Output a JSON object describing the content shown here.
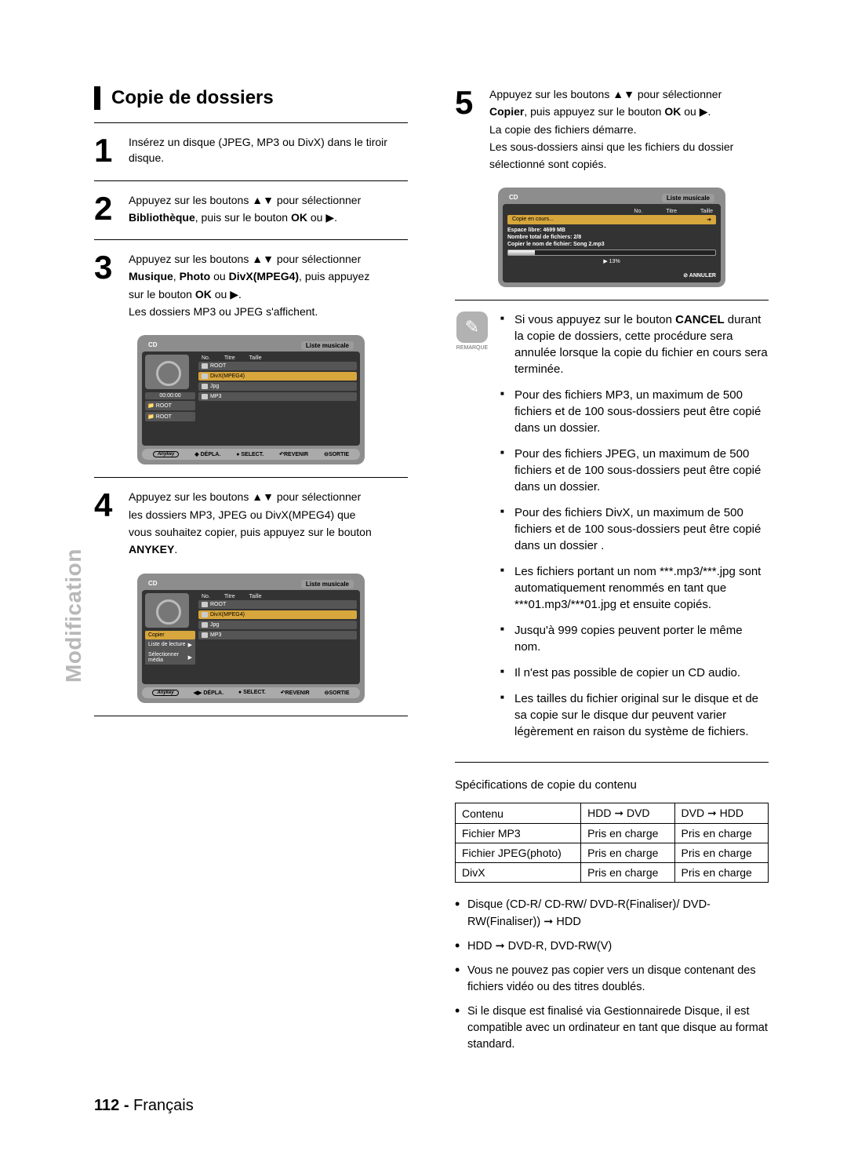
{
  "side_tab": "Modification",
  "left": {
    "title": "Copie de dossiers",
    "step1": {
      "num": "1",
      "text": "Insérez un disque (JPEG, MP3 ou DivX) dans le tiroir disque."
    },
    "step2": {
      "num": "2",
      "l1a": "Appuyez sur les boutons ",
      "l1b": " pour sélectionner",
      "l2a": "Bibliothèque",
      "l2b": ", puis sur le bouton ",
      "l2c": "OK",
      "l2d": " ou ▶."
    },
    "step3": {
      "num": "3",
      "l1a": "Appuyez sur les boutons ",
      "l1b": " pour sélectionner",
      "l2a": "Musique",
      "l2b": ", ",
      "l2c": "Photo",
      "l2d": " ou ",
      "l2e": "DivX(MPEG4)",
      "l2f": ", puis appuyez",
      "l3a": "sur le bouton ",
      "l3b": "OK",
      "l3c": " ou ▶.",
      "l4": "Les dossiers MP3 ou JPEG s'affichent."
    },
    "screen1": {
      "header_left": "CD",
      "header_right": "Liste musicale",
      "cols": {
        "no": "No.",
        "titre": "Titre",
        "taille": "Taille"
      },
      "rows": [
        "ROOT",
        "DivX(MPEG4)",
        "Jpg",
        "MP3"
      ],
      "timer": "00:00:00",
      "side": [
        "ROOT",
        "ROOT"
      ],
      "foot": {
        "anykey": "Anykey",
        "depl": "DÉPLA.",
        "sel": "SELECT.",
        "rev": "REVENIR",
        "sor": "SORTIE"
      }
    },
    "step4": {
      "num": "4",
      "l1a": "Appuyez sur les boutons ",
      "l1b": " pour sélectionner",
      "l2": "les dossiers MP3, JPEG ou DivX(MPEG4) que",
      "l3": "vous souhaitez copier, puis appuyez sur le bouton",
      "l4": "ANYKEY",
      "l4b": "."
    },
    "screen2": {
      "header_left": "CD",
      "header_right": "Liste musicale",
      "cols": {
        "no": "No.",
        "titre": "Titre",
        "taille": "Taille"
      },
      "rows": [
        "ROOT",
        "DivX(MPEG4)",
        "Jpg",
        "MP3"
      ],
      "menu": [
        "Copier",
        "Liste de lecture",
        "Sélectionner média"
      ],
      "foot": {
        "anykey": "Anykey",
        "depl": "DÉPLA.",
        "sel": "SELECT.",
        "rev": "REVENIR",
        "sor": "SORTIE"
      }
    }
  },
  "right": {
    "step5": {
      "num": "5",
      "l1a": "Appuyez sur les boutons ",
      "l1b": " pour sélectionner",
      "l2a": "Copier",
      "l2b": ", puis appuyez sur le bouton ",
      "l2c": "OK",
      "l2d": " ou ▶.",
      "l3": "La copie des fichiers démarre.",
      "l4": "Les sous-dossiers ainsi que les fichiers du dossier",
      "l5": "sélectionné sont copiés."
    },
    "screen3": {
      "header_left": "CD",
      "header_right": "Liste musicale",
      "cols": {
        "no": "No.",
        "titre": "Titre",
        "taille": "Taille"
      },
      "copying": "Copie en cours...",
      "info1": "Espace libre: 4699 MB",
      "info2": "Nombre total de fichiers: 2/8",
      "info3": "Copier le nom de fichier: Song 2.mp3",
      "pct": "13%",
      "cancel": "ANNULER"
    },
    "remark_label": "REMARQUE",
    "remarks": [
      {
        "pre": "Si vous appuyez sur le bouton ",
        "b": "CANCEL",
        "post": " durant la copie de dossiers, cette procédure sera annulée lorsque la copie du fichier en cours sera terminée."
      },
      {
        "text": "Pour des fichiers MP3, un maximum de 500 fichiers et de 100 sous-dossiers peut être copié dans un dossier."
      },
      {
        "text": "Pour des fichiers JPEG, un maximum de 500 fichiers et de 100 sous-dossiers peut être copié dans un dossier."
      },
      {
        "text": "Pour des fichiers DivX, un maximum de 500 fichiers et de 100 sous-dossiers peut être copié dans un dossier ."
      },
      {
        "text": "Les fichiers portant un nom ***.mp3/***.jpg sont automatiquement renommés en tant que ***01.mp3/***01.jpg et ensuite copiés."
      },
      {
        "text": "Jusqu'à 999 copies peuvent porter le même nom."
      },
      {
        "text": "Il n'est pas possible de copier un CD audio."
      },
      {
        "text": "Les tailles du fichier original sur le disque et de sa copie sur le disque dur peuvent varier légèrement en raison du système de fichiers."
      }
    ],
    "spec_title": "Spécifications de copie du contenu",
    "spec": {
      "head": [
        "Contenu",
        "HDD ➞ DVD",
        "DVD ➞ HDD"
      ],
      "rows": [
        [
          "Fichier MP3",
          "Pris en charge",
          "Pris en charge"
        ],
        [
          "Fichier JPEG(photo)",
          "Pris en charge",
          "Pris en charge"
        ],
        [
          "DivX",
          "Pris en charge",
          "Pris en charge"
        ]
      ]
    },
    "bullets": [
      "Disque (CD-R/ CD-RW/ DVD-R(Finaliser)/ DVD-RW(Finaliser)) ➞ HDD",
      "HDD ➞ DVD-R, DVD-RW(V)",
      "Vous ne pouvez pas copier vers un disque contenant des fichiers vidéo ou des titres doublés.",
      "Si le disque est finalisé via Gestionnairede Disque, il est compatible avec un ordinateur en tant que disque au format standard."
    ]
  },
  "footer": {
    "page": "112 -",
    "lang": "Français"
  },
  "colors": {
    "bar": "#000000",
    "side_tab": "#b8b8b8",
    "screen_bg": "#8d8d8d",
    "screen_inner": "#333333",
    "highlight": "#d7a63c",
    "remark_icon_bg": "#b2b2b2"
  }
}
